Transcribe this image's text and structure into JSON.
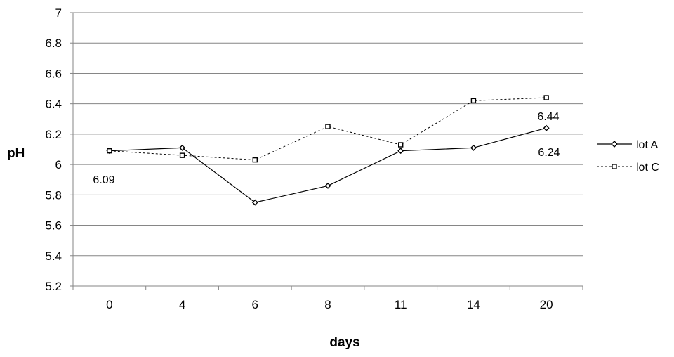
{
  "chart_data": {
    "type": "line",
    "title": "",
    "xlabel": "days",
    "ylabel": "pH",
    "categories": [
      "0",
      "4",
      "6",
      "8",
      "11",
      "14",
      "20"
    ],
    "ylim": [
      5.2,
      7
    ],
    "yticks": [
      "5.2",
      "5.4",
      "5.6",
      "5.8",
      "6",
      "6.2",
      "6.4",
      "6.6",
      "6.8",
      "7"
    ],
    "grid": true,
    "legend_position": "right",
    "series": [
      {
        "name": "lot A",
        "values": [
          6.09,
          6.11,
          5.75,
          5.86,
          6.09,
          6.11,
          6.24
        ],
        "line_style": "solid",
        "marker": "diamond",
        "color": "#000000"
      },
      {
        "name": "lot C",
        "values": [
          6.09,
          6.06,
          6.03,
          6.25,
          6.13,
          6.42,
          6.44
        ],
        "line_style": "dashed",
        "marker": "square",
        "color": "#000000"
      }
    ],
    "annotations": [
      "6.09",
      "6.44",
      "6.24"
    ]
  }
}
